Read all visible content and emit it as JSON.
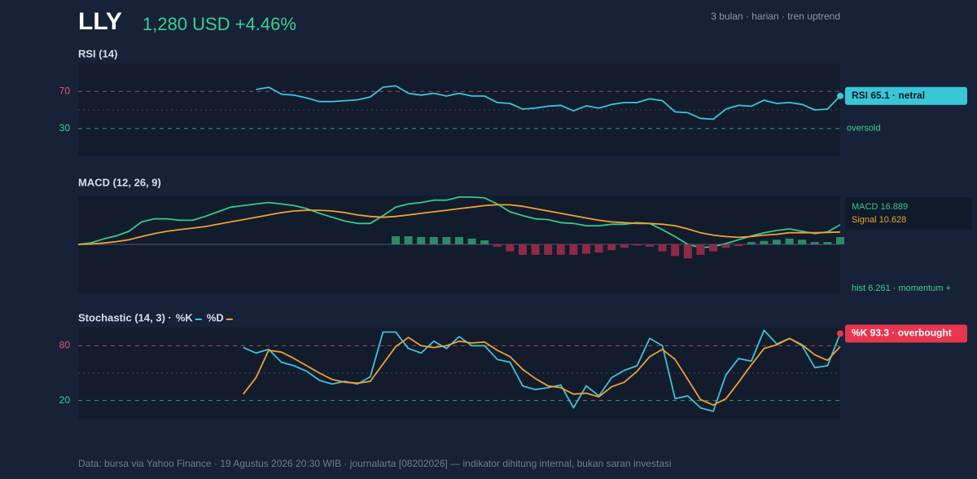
{
  "header": {
    "ticker": "LLY",
    "price": "1,280 USD +4.46%",
    "meta": "3 bulan · harian · tren uptrend"
  },
  "chart_data": [
    {
      "type": "line",
      "title": "RSI (14)",
      "ylim": [
        0,
        100
      ],
      "yticks": [
        30,
        70
      ],
      "annotations": [
        "RSI 65.1 · netral",
        "oversold"
      ],
      "series": [
        {
          "color": "#3cc3d8",
          "values": [
            null,
            null,
            null,
            null,
            null,
            null,
            null,
            null,
            null,
            null,
            null,
            null,
            null,
            null,
            72,
            74.5,
            67,
            66,
            63,
            59,
            59,
            60,
            61,
            64,
            74.5,
            76,
            68,
            66,
            68,
            65,
            68,
            65,
            65,
            58,
            57,
            51,
            52,
            54,
            55,
            49,
            54.5,
            52,
            56,
            58,
            58,
            62,
            60,
            48,
            47,
            41,
            40,
            51,
            55,
            54,
            60.5,
            57,
            58,
            56,
            50,
            51,
            65.1
          ]
        }
      ]
    },
    {
      "type": "line",
      "title": "MACD (12, 26, 9)",
      "ylim": [
        -42,
        42
      ],
      "annotations": [
        "MACD 16.889",
        "Signal 10.628",
        "hist 6.261 · momentum +"
      ],
      "series": [
        {
          "color": "#35c98a",
          "values": [
            0,
            1.3,
            4.7,
            7.3,
            11.3,
            19.3,
            22,
            22,
            20.7,
            20.7,
            24,
            28,
            32,
            33.3,
            34.7,
            36,
            34.7,
            33.3,
            30.7,
            26.7,
            23.3,
            20,
            18,
            18,
            24.7,
            32,
            34.7,
            36,
            38,
            38,
            40.7,
            40.7,
            40,
            34.7,
            28,
            24.7,
            22,
            21.3,
            18.7,
            18,
            16,
            16,
            17.3,
            17.3,
            18.7,
            18,
            12.7,
            6.7,
            0,
            -2.7,
            -2,
            0.7,
            4,
            7.3,
            10,
            12,
            13.3,
            11.3,
            9.3,
            10.7,
            16.889
          ]
        },
        {
          "color": "#f0a030",
          "values": [
            0,
            0.3,
            1.2,
            2.4,
            4,
            6.7,
            9.3,
            11.3,
            12.7,
            14,
            15.3,
            17.3,
            19.3,
            21.3,
            23.3,
            25.3,
            27.3,
            28.7,
            29.3,
            29.3,
            28.7,
            27.3,
            25.3,
            24,
            23.3,
            24,
            25.3,
            26.7,
            28,
            29.3,
            30.7,
            32,
            33.3,
            34,
            34,
            32.7,
            30.7,
            28.7,
            26.7,
            24.7,
            22.7,
            20.7,
            19.3,
            18.7,
            18,
            18,
            17.3,
            16,
            13.3,
            10,
            8,
            6.7,
            6,
            6.7,
            8,
            8.7,
            10,
            10,
            10,
            10.3,
            10.628
          ]
        },
        {
          "type": "bar",
          "colors": [
            "#2e8a66",
            "#8e2a45"
          ],
          "values": [
            null,
            null,
            null,
            null,
            null,
            null,
            null,
            null,
            null,
            null,
            null,
            null,
            null,
            null,
            null,
            null,
            null,
            null,
            null,
            null,
            null,
            null,
            null,
            null,
            null,
            7,
            7,
            6.3,
            6.3,
            6.3,
            6.3,
            5,
            3.5,
            -2,
            -6,
            -9,
            -9,
            -9,
            -9,
            -9,
            -8,
            -7,
            -5,
            -3,
            -1,
            -2,
            -6,
            -10,
            -12,
            -9,
            -6,
            -3,
            -1.5,
            2,
            3,
            4,
            5,
            4,
            2,
            2,
            6.261
          ]
        }
      ]
    },
    {
      "type": "line",
      "title": "Stochastic (14, 3) ·",
      "ylim": [
        0,
        100
      ],
      "yticks": [
        20,
        80
      ],
      "annotations": [
        "%K 93.3 · overbought"
      ],
      "series": [
        {
          "name": "%K",
          "color": "#3cc3d8",
          "values": [
            null,
            null,
            null,
            null,
            null,
            null,
            null,
            null,
            null,
            null,
            null,
            null,
            null,
            78,
            72,
            76,
            62,
            58,
            52,
            42,
            38,
            41,
            38,
            46,
            95,
            95,
            77,
            72,
            85,
            77,
            90,
            80,
            80,
            65,
            62,
            36,
            32,
            34,
            37,
            12,
            36,
            25,
            45,
            53,
            58,
            88,
            80,
            22,
            25,
            12,
            8,
            48,
            66,
            63,
            97,
            82,
            88,
            80,
            56,
            58,
            93.3
          ]
        },
        {
          "name": "%D",
          "color": "#f0a030",
          "values": [
            null,
            null,
            null,
            null,
            null,
            null,
            null,
            null,
            null,
            null,
            null,
            null,
            null,
            27,
            45,
            75,
            73,
            66,
            58,
            50,
            43,
            40,
            39,
            41,
            60,
            79,
            89,
            80,
            78,
            80,
            85,
            83,
            84,
            75,
            68,
            54,
            44,
            36,
            34,
            27,
            28,
            24,
            35,
            40,
            52,
            68,
            76,
            65,
            43,
            21,
            15,
            22,
            40,
            59,
            77,
            81,
            88,
            81,
            70,
            64,
            79
          ]
        }
      ]
    }
  ],
  "footer": "Data: bursa via Yahoo Finance · 19 Agustus 2026 20:30 WIB · journalarta [08202026] — indikator dihitung internal, bukan saran investasi"
}
